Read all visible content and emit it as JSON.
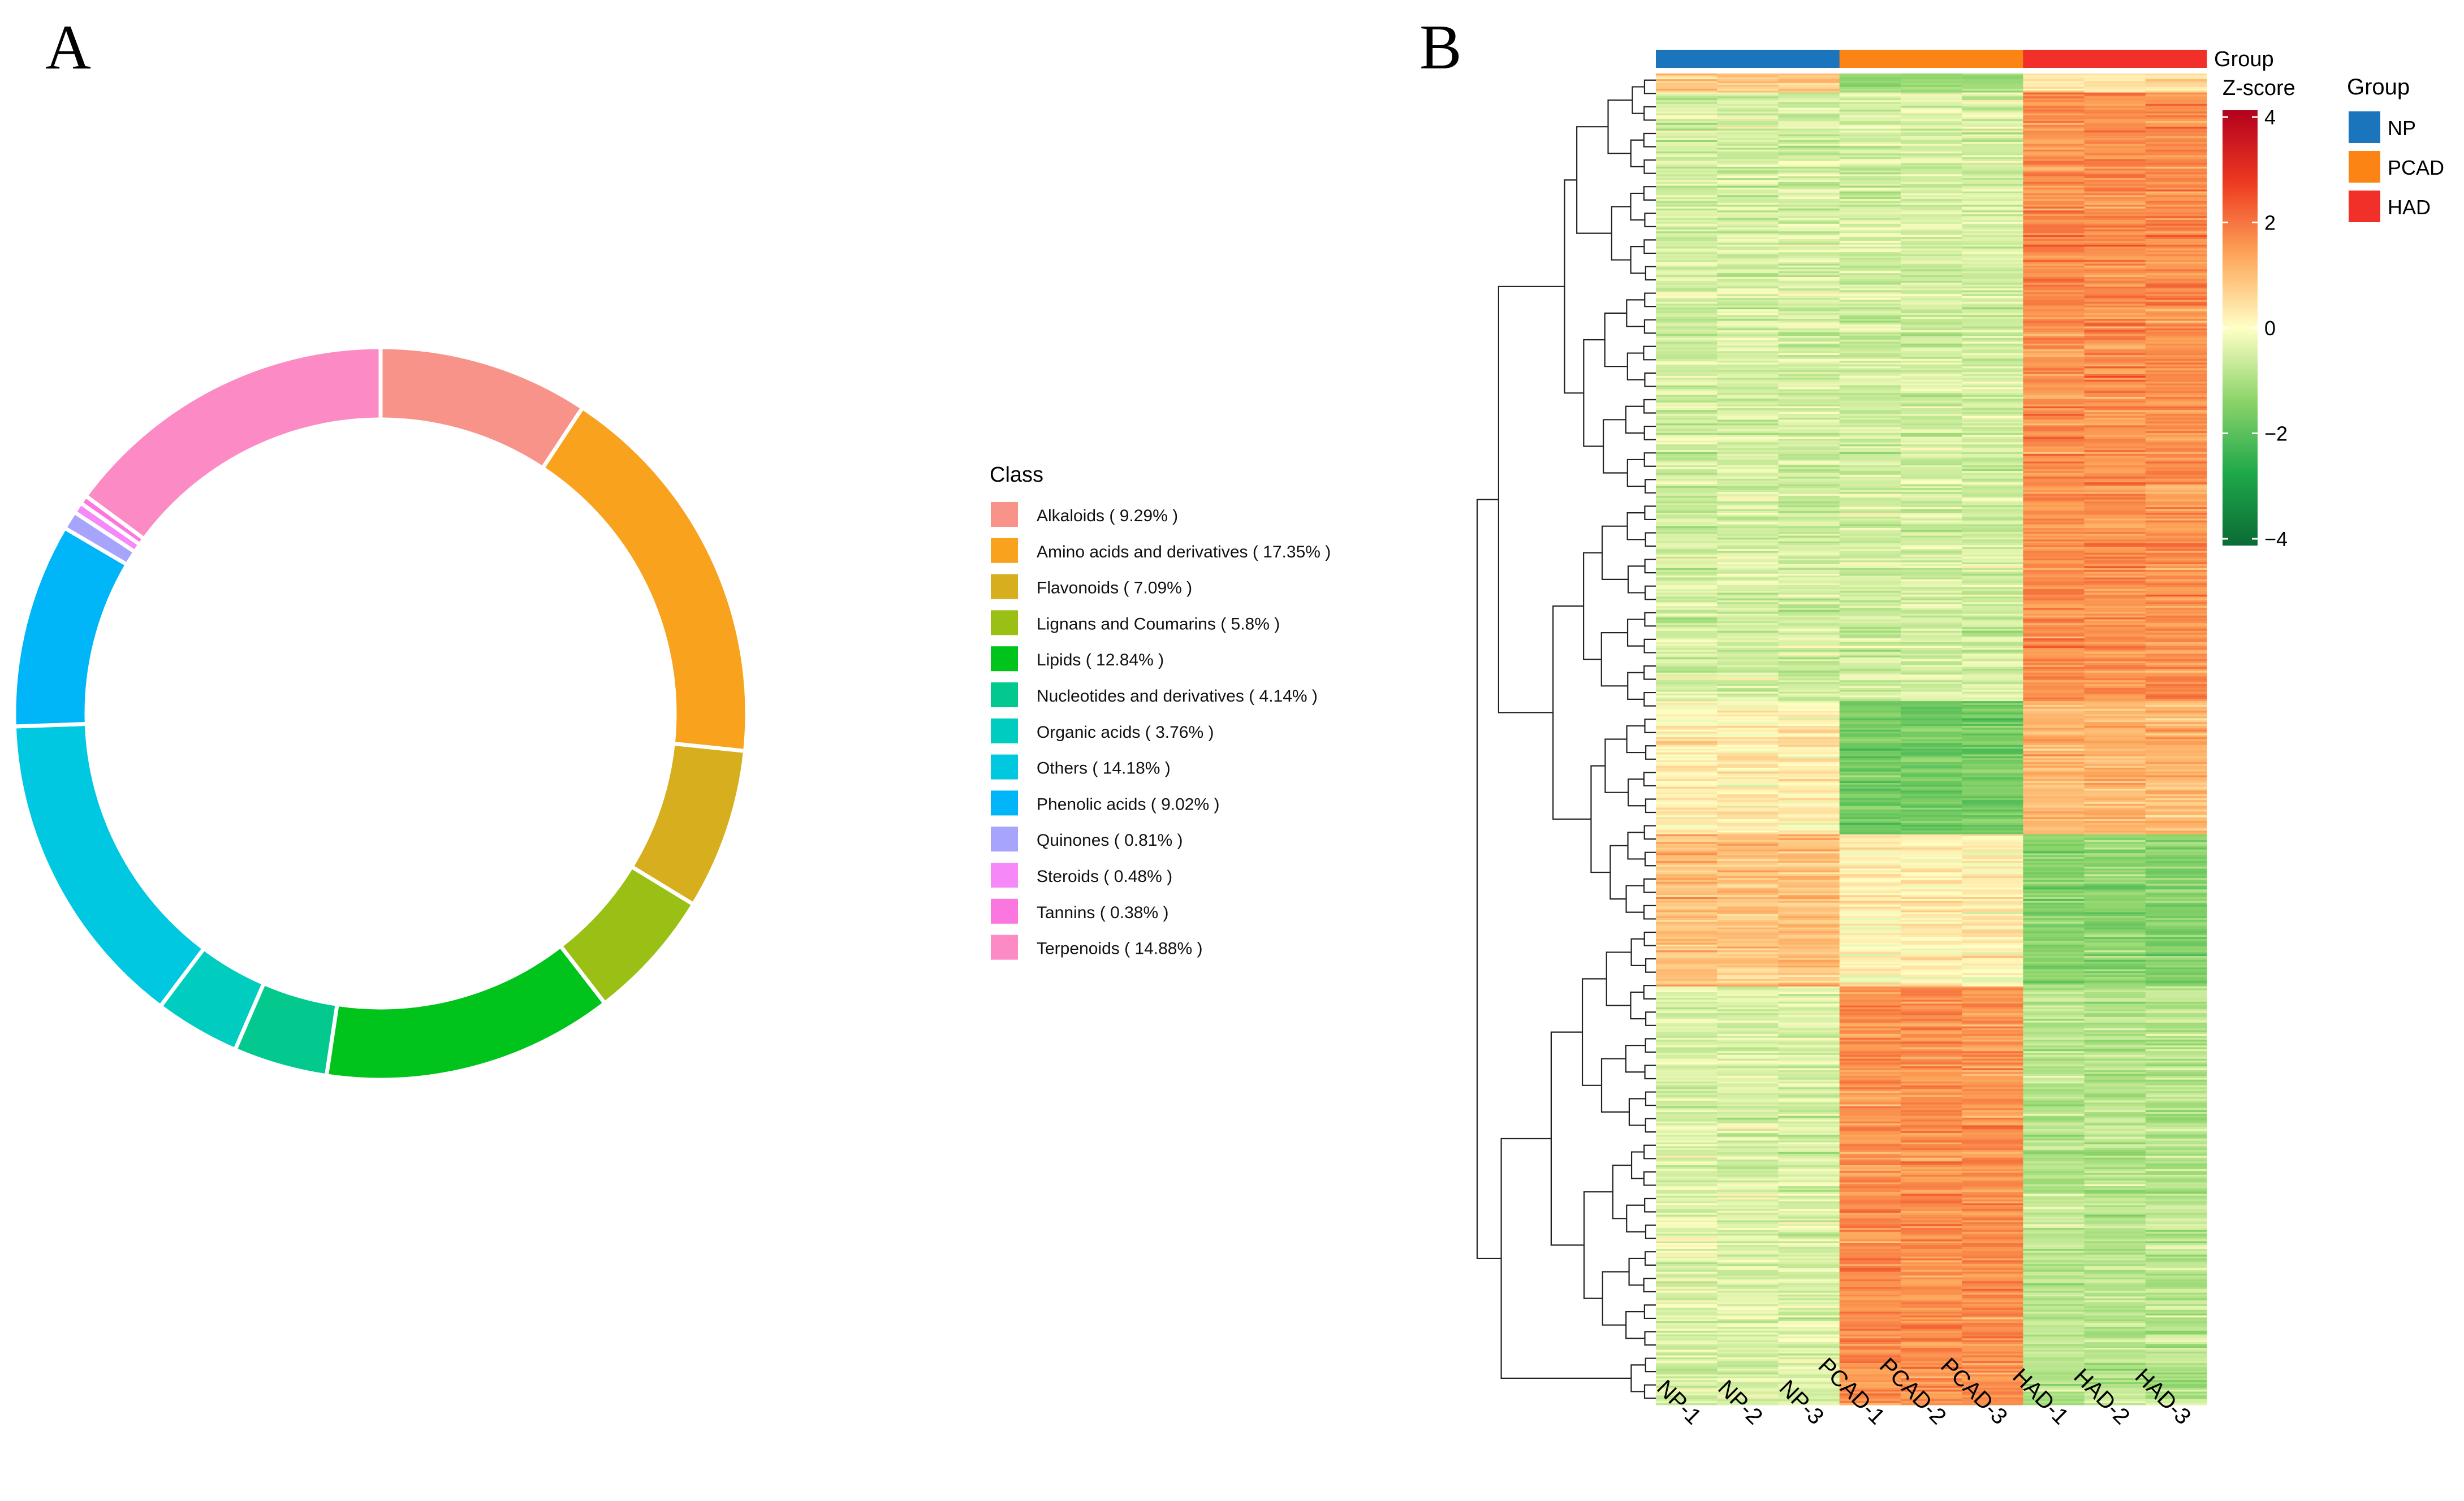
{
  "panels": {
    "a_label": "A",
    "b_label": "B"
  },
  "chart_data": [
    {
      "type": "pie",
      "subtype": "donut",
      "legend_title": "Class",
      "legend_position": "right",
      "slices": [
        {
          "name": "Alkaloids",
          "value": 9.29,
          "label": "Alkaloids ( 9.29% )",
          "color": "#F8938A"
        },
        {
          "name": "Amino acids and derivatives",
          "value": 17.35,
          "label": "Amino acids and derivatives ( 17.35% )",
          "color": "#F8A21E"
        },
        {
          "name": "Flavonoids",
          "value": 7.09,
          "label": "Flavonoids ( 7.09% )",
          "color": "#D6AE1E"
        },
        {
          "name": "Lignans and Coumarins",
          "value": 5.8,
          "label": "Lignans and Coumarins ( 5.8% )",
          "color": "#9AC015"
        },
        {
          "name": "Lipids",
          "value": 12.84,
          "label": "Lipids ( 12.84% )",
          "color": "#00C41C"
        },
        {
          "name": "Nucleotides and derivatives",
          "value": 4.14,
          "label": "Nucleotides and derivatives ( 4.14% )",
          "color": "#04C98E"
        },
        {
          "name": "Organic acids",
          "value": 3.76,
          "label": "Organic acids ( 3.76% )",
          "color": "#00CDC0"
        },
        {
          "name": "Others",
          "value": 14.18,
          "label": "Others ( 14.18% )",
          "color": "#00C8E0"
        },
        {
          "name": "Phenolic acids",
          "value": 9.02,
          "label": "Phenolic acids ( 9.02% )",
          "color": "#00B5F8"
        },
        {
          "name": "Quinones",
          "value": 0.81,
          "label": "Quinones ( 0.81% )",
          "color": "#A6A4FC"
        },
        {
          "name": "Steroids",
          "value": 0.48,
          "label": "Steroids ( 0.48% )",
          "color": "#F688F7"
        },
        {
          "name": "Tannins",
          "value": 0.38,
          "label": "Tannins ( 0.38% )",
          "color": "#FC76E0"
        },
        {
          "name": "Terpenoids",
          "value": 14.88,
          "label": "Terpenoids ( 14.88% )",
          "color": "#FC8AC4"
        }
      ]
    },
    {
      "type": "heatmap",
      "samples": [
        "NP-1",
        "NP-2",
        "NP-3",
        "PCAD-1",
        "PCAD-2",
        "PCAD-3",
        "HAD-1",
        "HAD-2",
        "HAD-3"
      ],
      "sample_groups": [
        "NP",
        "NP",
        "NP",
        "PCAD",
        "PCAD",
        "PCAD",
        "HAD",
        "HAD",
        "HAD"
      ],
      "annotation_title": "Group",
      "group_legend_title": "Group",
      "groups": [
        {
          "name": "NP",
          "color": "#1B75BC"
        },
        {
          "name": "PCAD",
          "color": "#FB8415"
        },
        {
          "name": "HAD",
          "color": "#F2302A"
        }
      ],
      "colorbar": {
        "title": "Z-score",
        "range": [
          -4,
          4
        ],
        "ticks": [
          4,
          2,
          0,
          -2,
          -4
        ],
        "tick_labels": [
          "4",
          "2",
          "0",
          "−2",
          "−4"
        ],
        "colors": [
          "#0A6B34",
          "#1FA84A",
          "#8CD46A",
          "#FFFFC5",
          "#FDA65A",
          "#EE3A20",
          "#B3001E"
        ]
      },
      "row_count": 700,
      "row_dendrogram": true,
      "row_blocks": [
        {
          "rows": 10,
          "group_means": [
            0.8,
            -1.2,
            0.4
          ]
        },
        {
          "rows": 320,
          "group_means": [
            -0.5,
            -0.5,
            1.6
          ]
        },
        {
          "rows": 70,
          "group_means": [
            0.3,
            -1.6,
            1.1
          ]
        },
        {
          "rows": 80,
          "group_means": [
            0.9,
            0.2,
            -1.4
          ]
        },
        {
          "rows": 220,
          "group_means": [
            -0.4,
            1.6,
            -0.8
          ]
        }
      ]
    }
  ]
}
